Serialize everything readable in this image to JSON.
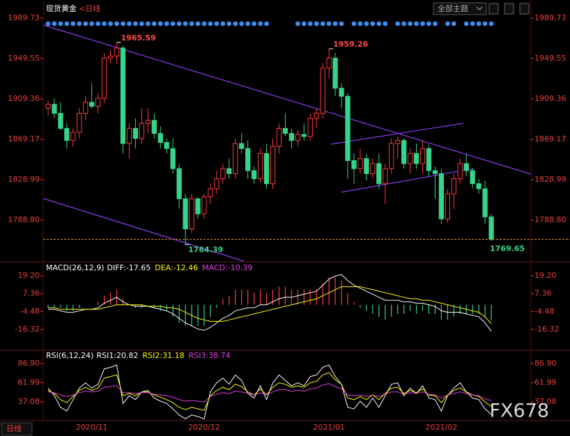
{
  "chart_data": [
    {
      "type": "candlestick",
      "title": "现货黄金",
      "subtitle": "<日线",
      "categories": [
        null,
        null,
        null,
        null,
        null,
        null,
        null,
        "2020/11",
        null,
        null,
        null,
        null,
        null,
        null,
        null,
        null,
        null,
        null,
        null,
        null,
        null,
        null,
        null,
        null,
        null,
        "2020/12",
        null,
        null,
        null,
        null,
        null,
        null,
        null,
        null,
        null,
        null,
        null,
        null,
        null,
        null,
        null,
        null,
        null,
        null,
        null,
        "2021/01",
        null,
        null,
        null,
        null,
        null,
        null,
        null,
        null,
        null,
        null,
        null,
        null,
        null,
        null,
        null,
        null,
        null,
        "2021/02",
        null,
        null,
        null,
        null,
        null,
        null,
        null,
        null
      ],
      "candles": [
        [
          1900,
          1908,
          1893,
          1904
        ],
        [
          1904,
          1910,
          1890,
          1895
        ],
        [
          1895,
          1906,
          1878,
          1880
        ],
        [
          1880,
          1885,
          1860,
          1868
        ],
        [
          1868,
          1880,
          1862,
          1876
        ],
        [
          1876,
          1900,
          1870,
          1895
        ],
        [
          1895,
          1912,
          1888,
          1906
        ],
        [
          1906,
          1925,
          1900,
          1902
        ],
        [
          1902,
          1915,
          1895,
          1910
        ],
        [
          1910,
          1955,
          1905,
          1950
        ],
        [
          1950,
          1958,
          1945,
          1952
        ],
        [
          1952,
          1965.59,
          1944,
          1960
        ],
        [
          1960,
          1962,
          1855,
          1865
        ],
        [
          1865,
          1885,
          1850,
          1880
        ],
        [
          1880,
          1890,
          1860,
          1870
        ],
        [
          1870,
          1900,
          1865,
          1885
        ],
        [
          1885,
          1900,
          1875,
          1888
        ],
        [
          1888,
          1895,
          1870,
          1875
        ],
        [
          1875,
          1882,
          1860,
          1866
        ],
        [
          1866,
          1870,
          1855,
          1860
        ],
        [
          1860,
          1870,
          1835,
          1840
        ],
        [
          1840,
          1845,
          1800,
          1810
        ],
        [
          1810,
          1815,
          1764.39,
          1780
        ],
        [
          1780,
          1815,
          1776,
          1810
        ],
        [
          1810,
          1812,
          1790,
          1795
        ],
        [
          1795,
          1815,
          1790,
          1812
        ],
        [
          1812,
          1825,
          1805,
          1820
        ],
        [
          1820,
          1838,
          1815,
          1830
        ],
        [
          1830,
          1845,
          1825,
          1840
        ],
        [
          1840,
          1850,
          1830,
          1835
        ],
        [
          1835,
          1870,
          1830,
          1865
        ],
        [
          1865,
          1875,
          1855,
          1860
        ],
        [
          1860,
          1868,
          1830,
          1838
        ],
        [
          1838,
          1842,
          1825,
          1830
        ],
        [
          1830,
          1860,
          1826,
          1855
        ],
        [
          1855,
          1865,
          1820,
          1825
        ],
        [
          1825,
          1870,
          1820,
          1862
        ],
        [
          1862,
          1885,
          1855,
          1880
        ],
        [
          1880,
          1895,
          1872,
          1875
        ],
        [
          1875,
          1880,
          1860,
          1868
        ],
        [
          1868,
          1878,
          1862,
          1874
        ],
        [
          1874,
          1885,
          1868,
          1872
        ],
        [
          1872,
          1895,
          1868,
          1890
        ],
        [
          1890,
          1900,
          1880,
          1895
        ],
        [
          1895,
          1945,
          1890,
          1940
        ],
        [
          1940,
          1959.26,
          1930,
          1950
        ],
        [
          1950,
          1955,
          1912,
          1920
        ],
        [
          1920,
          1925,
          1900,
          1912
        ],
        [
          1912,
          1915,
          1830,
          1848
        ],
        [
          1848,
          1855,
          1825,
          1840
        ],
        [
          1840,
          1860,
          1835,
          1850
        ],
        [
          1850,
          1855,
          1828,
          1835
        ],
        [
          1835,
          1850,
          1830,
          1845
        ],
        [
          1845,
          1855,
          1820,
          1825
        ],
        [
          1825,
          1845,
          1805,
          1840
        ],
        [
          1840,
          1870,
          1835,
          1865
        ],
        [
          1865,
          1872,
          1850,
          1868
        ],
        [
          1868,
          1870,
          1840,
          1845
        ],
        [
          1845,
          1860,
          1835,
          1855
        ],
        [
          1855,
          1865,
          1840,
          1845
        ],
        [
          1845,
          1868,
          1835,
          1860
        ],
        [
          1860,
          1864,
          1832,
          1838
        ],
        [
          1838,
          1842,
          1810,
          1835
        ],
        [
          1835,
          1840,
          1785,
          1790
        ],
        [
          1790,
          1820,
          1786,
          1815
        ],
        [
          1815,
          1835,
          1800,
          1830
        ],
        [
          1830,
          1850,
          1825,
          1845
        ],
        [
          1845,
          1855,
          1832,
          1838
        ],
        [
          1838,
          1840,
          1820,
          1825
        ],
        [
          1825,
          1830,
          1815,
          1820
        ],
        [
          1820,
          1828,
          1785,
          1792
        ],
        [
          1792,
          1795,
          1768,
          1769.65
        ]
      ],
      "colors": {
        "up": "#ff3b3b",
        "down": "#36d48a"
      },
      "annotations": {
        "high": [
          1965.59,
          1959.26
        ],
        "low": [
          1764.39
        ],
        "last": 1769.65
      },
      "ylim": [
        1747.9,
        2004.3
      ],
      "yticks": [
        {
          "value": 1788.8,
          "label": "1788.80"
        },
        1828.99,
        1869.17,
        1909.36,
        1949.55,
        1989.73
      ]
    },
    {
      "type": "macd",
      "title": "MACD(26,12,9)",
      "series": [
        {
          "name": "DIFF:-17.65",
          "color": "#ffffff",
          "values": [
            -3,
            -3,
            -4,
            -5,
            -5,
            -4,
            -3,
            -3,
            -2,
            1,
            3,
            5,
            2,
            0,
            -1,
            -1,
            -1,
            -2,
            -3,
            -4,
            -6,
            -9,
            -12,
            -14,
            -16,
            -17,
            -15,
            -12,
            -9,
            -7,
            -4,
            -3,
            -2,
            -2,
            0,
            0,
            2,
            4,
            5,
            5,
            6,
            7,
            8,
            9,
            13,
            17,
            19,
            20,
            16,
            13,
            11,
            9,
            7,
            5,
            3,
            3,
            3,
            2,
            2,
            1,
            1,
            0,
            -1,
            -4,
            -5,
            -5,
            -5,
            -6,
            -7,
            -8,
            -12,
            -17.65
          ]
        },
        {
          "name": "DEA:-12.46",
          "color": "#ffff00",
          "values": [
            -2,
            -2,
            -3,
            -3,
            -3,
            -3,
            -3,
            -3,
            -3,
            -2,
            -1,
            0,
            0,
            0,
            0,
            0,
            -1,
            -1,
            -1,
            -2,
            -2,
            -3,
            -5,
            -7,
            -9,
            -10,
            -11,
            -11,
            -11,
            -10,
            -9,
            -8,
            -7,
            -6,
            -5,
            -4,
            -3,
            -2,
            -1,
            0,
            1,
            2,
            3,
            4,
            6,
            8,
            10,
            12,
            12,
            12,
            12,
            11,
            10,
            9,
            8,
            7,
            6,
            5,
            4,
            4,
            3,
            3,
            2,
            1,
            0,
            -1,
            -2,
            -3,
            -4,
            -5,
            -8,
            -12.46
          ]
        },
        {
          "name": "MACD:-10.39",
          "color": "#e040e0",
          "up_color": "#ff4040",
          "down_color": "#36d48a",
          "type": "bar",
          "values": [
            -2,
            -2,
            -2,
            -4,
            -4,
            -2,
            0,
            0,
            2,
            6,
            8,
            10,
            4,
            0,
            -2,
            -2,
            0,
            -2,
            -4,
            -4,
            -8,
            -12,
            -14,
            -14,
            -14,
            -14,
            -8,
            -2,
            4,
            6,
            10,
            10,
            10,
            8,
            10,
            8,
            10,
            12,
            12,
            10,
            10,
            10,
            10,
            10,
            14,
            18,
            18,
            16,
            8,
            2,
            -2,
            -4,
            -6,
            -8,
            -10,
            -8,
            -6,
            -6,
            -4,
            -6,
            -4,
            -6,
            -6,
            -10,
            -10,
            -8,
            -6,
            -6,
            -6,
            -6,
            -8,
            -10.39
          ]
        }
      ],
      "ylim": [
        -28.8,
        27.5
      ],
      "yticks": [
        {
          "value": 19.2,
          "label": "19.20"
        },
        7.36,
        -4.48,
        -16.32
      ]
    },
    {
      "type": "line",
      "title": "RSI(6,12,24)",
      "series": [
        {
          "name": "RSI1:20.82",
          "color": "#ffffff",
          "values": [
            55,
            45,
            30,
            25,
            40,
            55,
            62,
            55,
            60,
            80,
            82,
            85,
            35,
            45,
            40,
            50,
            52,
            42,
            38,
            35,
            28,
            20,
            15,
            20,
            18,
            15,
            50,
            62,
            68,
            60,
            72,
            65,
            48,
            42,
            58,
            40,
            62,
            72,
            65,
            58,
            62,
            58,
            70,
            72,
            82,
            85,
            70,
            60,
            30,
            28,
            38,
            30,
            42,
            30,
            45,
            60,
            62,
            45,
            55,
            48,
            58,
            42,
            40,
            25,
            45,
            55,
            62,
            50,
            42,
            40,
            28,
            20.82
          ]
        },
        {
          "name": "RSI2:31.18",
          "color": "#ffff00",
          "values": [
            52,
            48,
            40,
            36,
            44,
            52,
            56,
            52,
            55,
            68,
            70,
            72,
            45,
            48,
            45,
            50,
            50,
            46,
            43,
            40,
            36,
            30,
            27,
            30,
            28,
            26,
            45,
            52,
            56,
            53,
            60,
            57,
            50,
            46,
            54,
            46,
            56,
            62,
            60,
            56,
            58,
            56,
            62,
            64,
            72,
            75,
            66,
            60,
            42,
            40,
            44,
            40,
            46,
            40,
            48,
            55,
            56,
            48,
            52,
            49,
            54,
            46,
            45,
            36,
            46,
            52,
            55,
            50,
            46,
            44,
            37,
            31.18
          ]
        },
        {
          "name": "RSI3:38.74",
          "color": "#e040e0",
          "values": [
            50,
            49,
            46,
            44,
            46,
            49,
            51,
            50,
            51,
            56,
            57,
            58,
            49,
            49,
            48,
            49,
            49,
            47,
            46,
            45,
            43,
            40,
            38,
            39,
            38,
            37,
            44,
            47,
            49,
            48,
            51,
            50,
            48,
            46,
            49,
            46,
            50,
            53,
            53,
            51,
            52,
            51,
            54,
            55,
            59,
            61,
            57,
            54,
            46,
            45,
            46,
            44,
            46,
            44,
            47,
            50,
            50,
            47,
            49,
            48,
            50,
            47,
            46,
            42,
            46,
            48,
            50,
            48,
            46,
            45,
            41,
            38.74
          ]
        }
      ],
      "ylim": [
        13.5,
        102.3
      ],
      "yticks": [
        {
          "value": 86.9,
          "label": "86.90"
        },
        61.99,
        37.08
      ]
    }
  ],
  "ui": {
    "button": "全部主题",
    "period": "日线",
    "watermark": "FX678"
  }
}
